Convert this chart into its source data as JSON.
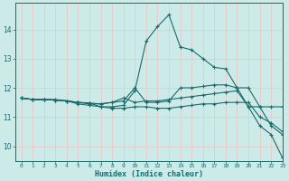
{
  "xlabel": "Humidex (Indice chaleur)",
  "background_color": "#cceae8",
  "plot_bg_color": "#cceae8",
  "line_color": "#1a6b6b",
  "grid_color": "#e8c8c8",
  "x_ticks": [
    0,
    1,
    2,
    3,
    4,
    5,
    6,
    7,
    8,
    9,
    10,
    11,
    12,
    13,
    14,
    15,
    16,
    17,
    18,
    19,
    20,
    21,
    22,
    23
  ],
  "y_ticks": [
    10,
    11,
    12,
    13,
    14
  ],
  "xlim": [
    -0.5,
    23
  ],
  "ylim": [
    9.5,
    14.9
  ],
  "lines": [
    [
      11.65,
      11.6,
      11.6,
      11.6,
      11.55,
      11.45,
      11.4,
      11.35,
      11.35,
      11.4,
      11.9,
      13.6,
      14.1,
      14.5,
      13.4,
      13.3,
      13.0,
      12.7,
      12.65,
      12.0,
      11.35,
      10.7,
      10.4,
      9.6
    ],
    [
      11.65,
      11.6,
      11.6,
      11.58,
      11.55,
      11.5,
      11.45,
      11.45,
      11.5,
      11.55,
      12.0,
      11.5,
      11.5,
      11.55,
      12.0,
      12.0,
      12.05,
      12.1,
      12.1,
      12.0,
      12.0,
      11.35,
      11.35,
      11.35
    ],
    [
      11.65,
      11.6,
      11.6,
      11.58,
      11.55,
      11.5,
      11.48,
      11.45,
      11.5,
      11.65,
      11.5,
      11.55,
      11.55,
      11.6,
      11.65,
      11.7,
      11.75,
      11.8,
      11.85,
      11.9,
      11.35,
      11.35,
      10.7,
      10.4
    ],
    [
      11.65,
      11.6,
      11.6,
      11.58,
      11.55,
      11.5,
      11.48,
      11.35,
      11.3,
      11.3,
      11.35,
      11.35,
      11.3,
      11.3,
      11.35,
      11.4,
      11.45,
      11.45,
      11.5,
      11.5,
      11.5,
      11.0,
      10.8,
      10.5
    ]
  ]
}
